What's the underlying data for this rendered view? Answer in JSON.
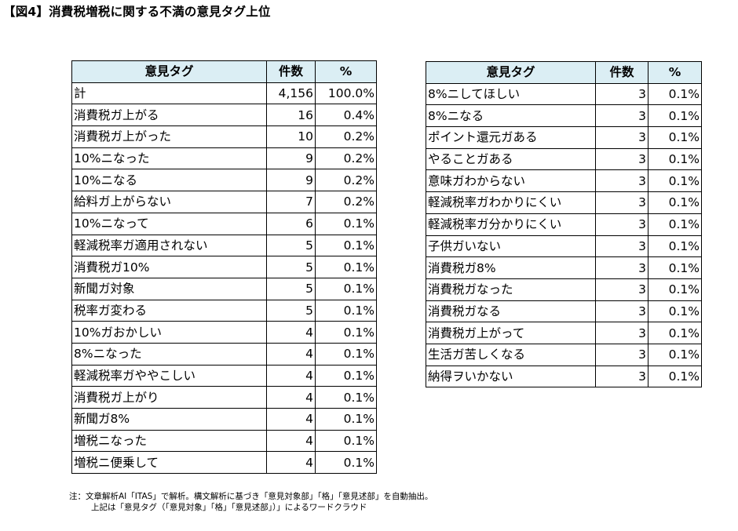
{
  "title": "【図4】消費税増税に関する不満の意見タグ上位",
  "headers": {
    "tag": "意見タグ",
    "count": "件数",
    "pct": "%"
  },
  "left_rows": [
    {
      "tag": "計",
      "count": "4,156",
      "pct": "100.0%"
    },
    {
      "tag": "消費税ガ上がる",
      "count": "16",
      "pct": "0.4%"
    },
    {
      "tag": "消費税ガ上がった",
      "count": "10",
      "pct": "0.2%"
    },
    {
      "tag": "10%ニなった",
      "count": "9",
      "pct": "0.2%"
    },
    {
      "tag": "10%ニなる",
      "count": "9",
      "pct": "0.2%"
    },
    {
      "tag": "給料ガ上がらない",
      "count": "7",
      "pct": "0.2%"
    },
    {
      "tag": "10%ニなって",
      "count": "6",
      "pct": "0.1%"
    },
    {
      "tag": "軽減税率ガ適用されない",
      "count": "5",
      "pct": "0.1%"
    },
    {
      "tag": "消費税ガ10%",
      "count": "5",
      "pct": "0.1%"
    },
    {
      "tag": "新聞ガ対象",
      "count": "5",
      "pct": "0.1%"
    },
    {
      "tag": "税率ガ変わる",
      "count": "5",
      "pct": "0.1%"
    },
    {
      "tag": "10%ガおかしい",
      "count": "4",
      "pct": "0.1%"
    },
    {
      "tag": "8%ニなった",
      "count": "4",
      "pct": "0.1%"
    },
    {
      "tag": "軽減税率ガややこしい",
      "count": "4",
      "pct": "0.1%"
    },
    {
      "tag": "消費税ガ上がり",
      "count": "4",
      "pct": "0.1%"
    },
    {
      "tag": "新聞ガ8%",
      "count": "4",
      "pct": "0.1%"
    },
    {
      "tag": "増税ニなった",
      "count": "4",
      "pct": "0.1%"
    },
    {
      "tag": "増税ニ便乗して",
      "count": "4",
      "pct": "0.1%"
    }
  ],
  "right_rows": [
    {
      "tag": "8%ニしてほしい",
      "count": "3",
      "pct": "0.1%"
    },
    {
      "tag": "8%ニなる",
      "count": "3",
      "pct": "0.1%"
    },
    {
      "tag": "ポイント還元ガある",
      "count": "3",
      "pct": "0.1%"
    },
    {
      "tag": "やることガある",
      "count": "3",
      "pct": "0.1%"
    },
    {
      "tag": "意味ガわからない",
      "count": "3",
      "pct": "0.1%"
    },
    {
      "tag": "軽減税率ガわかりにくい",
      "count": "3",
      "pct": "0.1%"
    },
    {
      "tag": "軽減税率ガ分かりにくい",
      "count": "3",
      "pct": "0.1%"
    },
    {
      "tag": "子供ガいない",
      "count": "3",
      "pct": "0.1%"
    },
    {
      "tag": "消費税ガ8%",
      "count": "3",
      "pct": "0.1%"
    },
    {
      "tag": "消費税ガなった",
      "count": "3",
      "pct": "0.1%"
    },
    {
      "tag": "消費税ガなる",
      "count": "3",
      "pct": "0.1%"
    },
    {
      "tag": "消費税ガ上がって",
      "count": "3",
      "pct": "0.1%"
    },
    {
      "tag": "生活ガ苦しくなる",
      "count": "3",
      "pct": "0.1%"
    },
    {
      "tag": "納得ヲいかない",
      "count": "3",
      "pct": "0.1%"
    }
  ],
  "note": {
    "line1": "注：文章解析AI「ITAS」で解析。構文解析に基づき「意見対象部」「格」「意見述部」を自動抽出。",
    "line2": "上記は「意見タグ（「意見対象」「格」「意見述部」）」によるワードクラウド"
  },
  "colors": {
    "header_bg": "#dbeef4",
    "border": "#000000"
  }
}
